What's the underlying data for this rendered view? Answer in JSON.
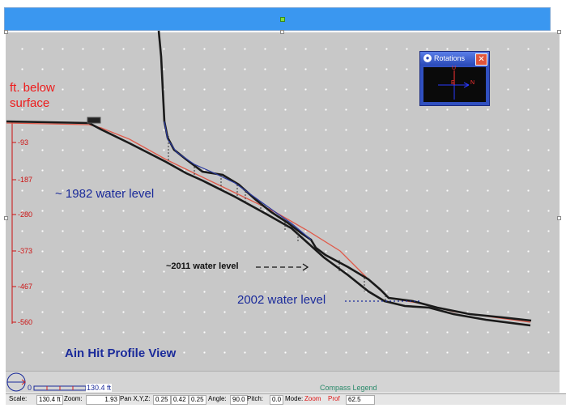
{
  "y_axis": {
    "label": "ft. below\nsurface",
    "ticks": [
      "-93",
      "-187",
      "-280",
      "-373",
      "-467",
      "-560"
    ]
  },
  "annotations": {
    "water_1982": "~ 1982 water level",
    "water_2011": "~2011 water level",
    "water_2002": "2002 water level",
    "view_title": "Ain Hit Profile View"
  },
  "rotations_window": {
    "title": "Rotations",
    "close": "✕",
    "compass_n": "N",
    "compass_e": "E",
    "compass_u": "U"
  },
  "compass": {
    "legend_label": "Compass Legend",
    "scale_value": "130.4 ft",
    "scale_zero": "0"
  },
  "status_bar": {
    "scale_label": "Scale:",
    "scale_value": "130.4 ft",
    "zoom_label": "Zoom:",
    "zoom_value": "1.93",
    "pan_label": "Pan X,Y,Z:",
    "pan_x": "0.25",
    "pan_y": "0.42",
    "pan_z": "0.25",
    "angle_label": "Angle:",
    "angle_value": "90.0",
    "pitch_label": "Pitch:",
    "pitch_value": "0.0",
    "mode_label": "Mode:",
    "mode_value": "Zoom",
    "prof_label": "Prof",
    "prof_value": "62.5"
  },
  "colors": {
    "annotation_blue": "#1a2a9a",
    "axis_red": "#cc1111",
    "profile_line": "#e05a4a",
    "canvas_bg": "#c8c8c8"
  }
}
